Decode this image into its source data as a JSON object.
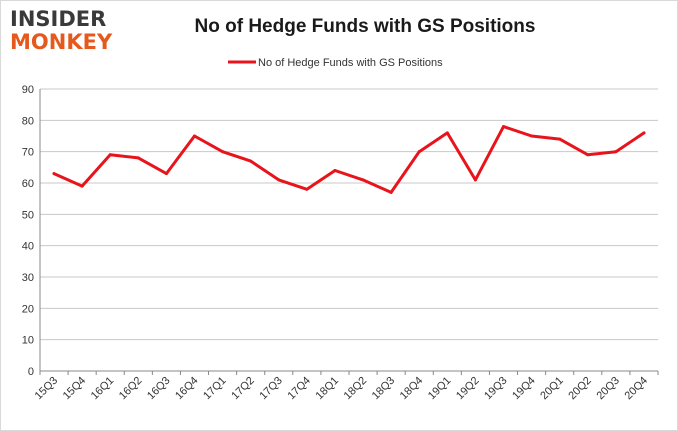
{
  "logo": {
    "line1": "INSIDER",
    "line2": "MONKEY"
  },
  "colors": {
    "series": "#e8141c",
    "grid": "#c8c8c8",
    "logo_dark": "#3a3a3a",
    "logo_orange": "#e55a1c"
  },
  "chart_data": {
    "type": "line",
    "title": "No of Hedge Funds with GS Positions",
    "xlabel": "",
    "ylabel": "",
    "ylim": [
      0,
      90
    ],
    "yticks": [
      0,
      10,
      20,
      30,
      40,
      50,
      60,
      70,
      80,
      90
    ],
    "grid": true,
    "legend_position": "top-center",
    "categories": [
      "15Q3",
      "15Q4",
      "16Q1",
      "16Q2",
      "16Q3",
      "16Q4",
      "17Q1",
      "17Q2",
      "17Q3",
      "17Q4",
      "18Q1",
      "18Q2",
      "18Q3",
      "18Q4",
      "19Q1",
      "19Q2",
      "19Q3",
      "19Q4",
      "20Q1",
      "20Q2",
      "20Q3",
      "20Q4"
    ],
    "series": [
      {
        "name": "No of Hedge Funds with GS Positions",
        "values": [
          63,
          59,
          69,
          68,
          63,
          75,
          70,
          67,
          61,
          58,
          64,
          61,
          57,
          70,
          76,
          61,
          78,
          75,
          74,
          69,
          70,
          76
        ]
      }
    ]
  }
}
